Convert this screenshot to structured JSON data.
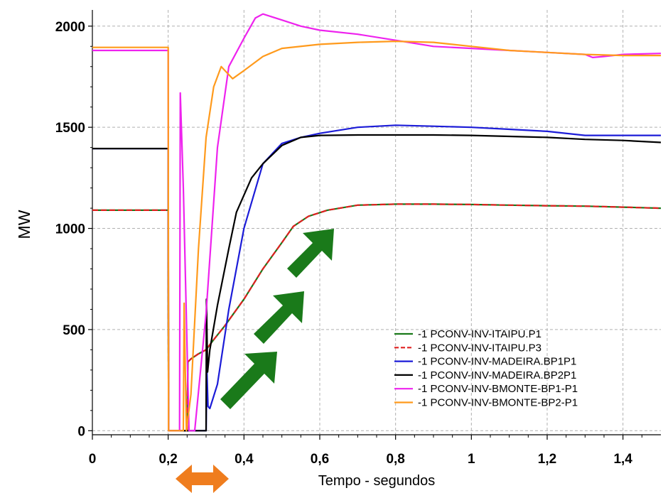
{
  "chart_data": {
    "type": "line",
    "xlabel": "Tempo - segundos",
    "ylabel": "MW",
    "xlim": [
      0,
      1.5
    ],
    "ylim": [
      -20,
      2080
    ],
    "x_ticks": [
      0,
      0.2,
      0.4,
      0.6,
      0.8,
      1.0,
      1.2,
      1.4
    ],
    "x_tick_labels": [
      "0",
      "0,2",
      "0,4",
      "0,6",
      "0,8",
      "1",
      "1,2",
      "1,4"
    ],
    "y_ticks": [
      0,
      500,
      1000,
      1500,
      2000
    ],
    "y_tick_labels": [
      "0",
      "500",
      "1000",
      "1500",
      "2000"
    ],
    "grid": true,
    "legend_position": "bottom-right",
    "series": [
      {
        "name": "-1 PCONV-INV-ITAIPU.P1",
        "color": "#1a7a1a",
        "dash": "solid",
        "x": [
          0,
          0.2,
          0.201,
          0.25,
          0.252,
          0.26,
          0.28,
          0.3,
          0.32,
          0.35,
          0.4,
          0.45,
          0.5,
          0.53,
          0.57,
          0.62,
          0.7,
          0.8,
          0.9,
          1.0,
          1.1,
          1.2,
          1.3,
          1.4,
          1.5
        ],
        "y": [
          1090,
          1090,
          0,
          0,
          340,
          355,
          380,
          400,
          450,
          520,
          650,
          800,
          930,
          1010,
          1060,
          1090,
          1115,
          1120,
          1120,
          1118,
          1115,
          1112,
          1110,
          1105,
          1100
        ]
      },
      {
        "name": "-1 PCONV-INV-ITAIPU.P3",
        "color": "#e02020",
        "dash": "dashed",
        "x": [
          0,
          0.2,
          0.201,
          0.25,
          0.252,
          0.26,
          0.28,
          0.3,
          0.32,
          0.35,
          0.4,
          0.45,
          0.5,
          0.53,
          0.57,
          0.62,
          0.7,
          0.8,
          0.9,
          1.0,
          1.1,
          1.2,
          1.3,
          1.4,
          1.5
        ],
        "y": [
          1090,
          1090,
          0,
          0,
          340,
          355,
          380,
          400,
          450,
          520,
          650,
          800,
          930,
          1010,
          1060,
          1090,
          1115,
          1120,
          1120,
          1118,
          1115,
          1112,
          1110,
          1105,
          1100
        ]
      },
      {
        "name": "-1 PCONV-INV-MADEIRA.BP1P1",
        "color": "#1c1cd8",
        "dash": "solid",
        "x": [
          0,
          0.2,
          0.201,
          0.3,
          0.302,
          0.305,
          0.31,
          0.33,
          0.36,
          0.4,
          0.45,
          0.5,
          0.55,
          0.6,
          0.7,
          0.8,
          0.9,
          1.0,
          1.1,
          1.2,
          1.3,
          1.4,
          1.5
        ],
        "y": [
          1395,
          1395,
          0,
          0,
          300,
          120,
          110,
          230,
          600,
          1000,
          1320,
          1420,
          1450,
          1470,
          1500,
          1510,
          1505,
          1500,
          1490,
          1480,
          1460,
          1460,
          1460
        ]
      },
      {
        "name": "-1 PCONV-INV-MADEIRA.BP2P1",
        "color": "#000000",
        "dash": "solid",
        "x": [
          0,
          0.2,
          0.201,
          0.3,
          0.301,
          0.304,
          0.31,
          0.33,
          0.36,
          0.38,
          0.42,
          0.45,
          0.5,
          0.55,
          0.6,
          0.7,
          0.8,
          0.9,
          1.0,
          1.1,
          1.2,
          1.3,
          1.4,
          1.5
        ],
        "y": [
          1395,
          1395,
          0,
          0,
          650,
          290,
          400,
          620,
          900,
          1080,
          1250,
          1320,
          1410,
          1450,
          1460,
          1462,
          1462,
          1462,
          1460,
          1455,
          1450,
          1440,
          1435,
          1425
        ]
      },
      {
        "name": "-1 PCONV-INV-BMONTE-BP1-P1",
        "color": "#ee22ee",
        "dash": "solid",
        "x": [
          0,
          0.2,
          0.201,
          0.23,
          0.232,
          0.24,
          0.255,
          0.27,
          0.3,
          0.33,
          0.36,
          0.4,
          0.43,
          0.45,
          0.5,
          0.55,
          0.6,
          0.7,
          0.8,
          0.9,
          1.0,
          1.1,
          1.2,
          1.3,
          1.32,
          1.35,
          1.4,
          1.5
        ],
        "y": [
          1880,
          1880,
          0,
          0,
          1670,
          1200,
          0,
          0,
          580,
          1400,
          1800,
          1940,
          2040,
          2060,
          2030,
          2000,
          1980,
          1960,
          1930,
          1900,
          1890,
          1880,
          1870,
          1860,
          1845,
          1850,
          1860,
          1865
        ]
      },
      {
        "name": "-1 PCONV-INV-BMONTE-BP2-P1",
        "color": "#ff9a1c",
        "dash": "solid",
        "x": [
          0,
          0.2,
          0.201,
          0.24,
          0.242,
          0.248,
          0.26,
          0.28,
          0.3,
          0.32,
          0.34,
          0.37,
          0.4,
          0.45,
          0.5,
          0.6,
          0.7,
          0.8,
          0.9,
          1.0,
          1.1,
          1.2,
          1.3,
          1.4,
          1.5
        ],
        "y": [
          1895,
          1895,
          0,
          0,
          630,
          0,
          180,
          900,
          1450,
          1700,
          1800,
          1740,
          1780,
          1850,
          1890,
          1910,
          1920,
          1925,
          1920,
          1900,
          1880,
          1870,
          1860,
          1855,
          1855
        ]
      }
    ]
  }
}
